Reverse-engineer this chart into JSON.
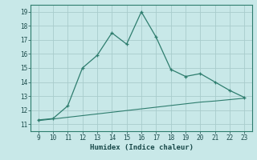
{
  "x": [
    9,
    10,
    11,
    12,
    13,
    14,
    15,
    16,
    17,
    18,
    19,
    20,
    21,
    22,
    23
  ],
  "y_main": [
    11.3,
    11.4,
    12.3,
    15.0,
    15.9,
    17.5,
    16.7,
    19.0,
    17.2,
    14.9,
    14.4,
    14.6,
    14.0,
    13.4,
    12.9
  ],
  "y_trend": [
    11.25,
    11.37,
    11.49,
    11.61,
    11.73,
    11.85,
    11.97,
    12.09,
    12.21,
    12.33,
    12.45,
    12.57,
    12.65,
    12.75,
    12.85
  ],
  "line_color": "#2e7d6e",
  "bg_color": "#c8e8e8",
  "grid_color": "#a8cccc",
  "xlabel": "Humidex (Indice chaleur)",
  "xlim": [
    8.5,
    23.5
  ],
  "ylim": [
    10.5,
    19.5
  ],
  "xticks": [
    9,
    10,
    11,
    12,
    13,
    14,
    15,
    16,
    17,
    18,
    19,
    20,
    21,
    22,
    23
  ],
  "yticks": [
    11,
    12,
    13,
    14,
    15,
    16,
    17,
    18,
    19
  ]
}
